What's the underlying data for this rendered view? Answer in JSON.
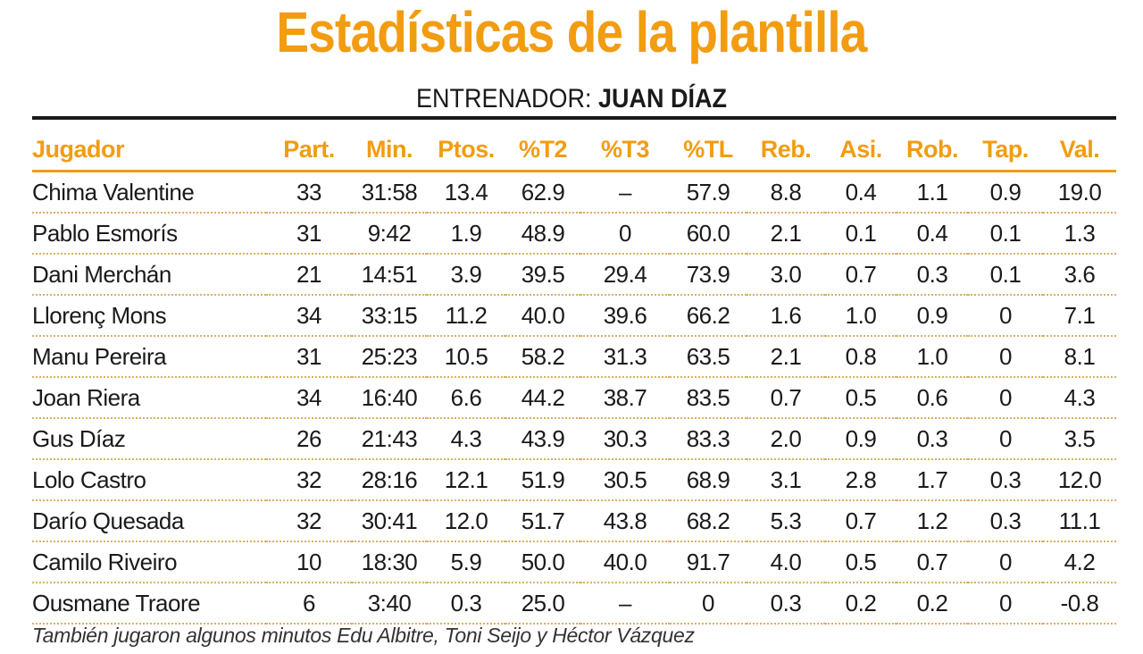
{
  "header": {
    "title": "Estadísticas de la plantilla",
    "coach_label": "ENTRENADOR:",
    "coach_name": "JUAN DÍAZ"
  },
  "table": {
    "columns": [
      "Jugador",
      "Part.",
      "Min.",
      "Ptos.",
      "%T2",
      "%T3",
      "%TL",
      "Reb.",
      "Asi.",
      "Rob.",
      "Tap.",
      "Val."
    ],
    "rows": [
      [
        "Chima Valentine",
        "33",
        "31:58",
        "13.4",
        "62.9",
        "–",
        "57.9",
        "8.8",
        "0.4",
        "1.1",
        "0.9",
        "19.0"
      ],
      [
        "Pablo Esmorís",
        "31",
        "9:42",
        "1.9",
        "48.9",
        "0",
        "60.0",
        "2.1",
        "0.1",
        "0.4",
        "0.1",
        "1.3"
      ],
      [
        "Dani Merchán",
        "21",
        "14:51",
        "3.9",
        "39.5",
        "29.4",
        "73.9",
        "3.0",
        "0.7",
        "0.3",
        "0.1",
        "3.6"
      ],
      [
        "Llorenç Mons",
        "34",
        "33:15",
        "11.2",
        "40.0",
        "39.6",
        "66.2",
        "1.6",
        "1.0",
        "0.9",
        "0",
        "7.1"
      ],
      [
        "Manu Pereira",
        "31",
        "25:23",
        "10.5",
        "58.2",
        "31.3",
        "63.5",
        "2.1",
        "0.8",
        "1.0",
        "0",
        "8.1"
      ],
      [
        "Joan Riera",
        "34",
        "16:40",
        "6.6",
        "44.2",
        "38.7",
        "83.5",
        "0.7",
        "0.5",
        "0.6",
        "0",
        "4.3"
      ],
      [
        "Gus Díaz",
        "26",
        "21:43",
        "4.3",
        "43.9",
        "30.3",
        "83.3",
        "2.0",
        "0.9",
        "0.3",
        "0",
        "3.5"
      ],
      [
        "Lolo Castro",
        "32",
        "28:16",
        "12.1",
        "51.9",
        "30.5",
        "68.9",
        "3.1",
        "2.8",
        "1.7",
        "0.3",
        "12.0"
      ],
      [
        "Darío Quesada",
        "32",
        "30:41",
        "12.0",
        "51.7",
        "43.8",
        "68.2",
        "5.3",
        "0.7",
        "1.2",
        "0.3",
        "11.1"
      ],
      [
        "Camilo Riveiro",
        "10",
        "18:30",
        "5.9",
        "50.0",
        "40.0",
        "91.7",
        "4.0",
        "0.5",
        "0.7",
        "0",
        "4.2"
      ],
      [
        "Ousmane Traore",
        "6",
        "3:40",
        "0.3",
        "25.0",
        "–",
        "0",
        "0.3",
        "0.2",
        "0.2",
        "0",
        "-0.8"
      ]
    ]
  },
  "footnote": "También jugaron algunos minutos Edu Albitre, Toni Seijo y Héctor Vázquez",
  "colors": {
    "accent": "#f29c11",
    "text": "#1a1a1a",
    "dotted_rule": "#d9b06a"
  }
}
